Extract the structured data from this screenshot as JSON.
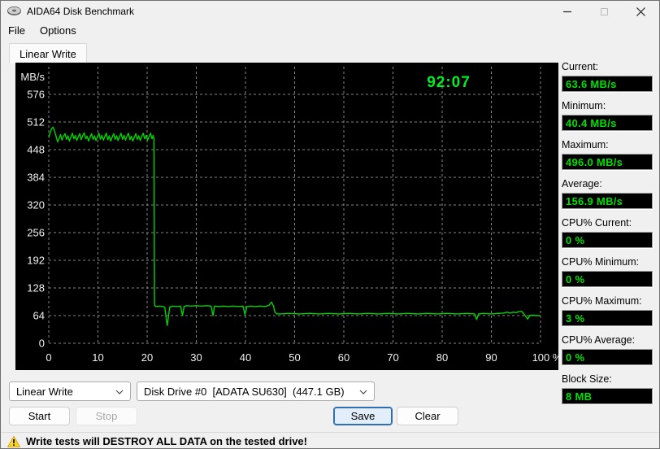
{
  "window": {
    "title": "AIDA64 Disk Benchmark",
    "icon": "disk-icon",
    "controls": {
      "minimize": "minimize",
      "maximize": "maximize",
      "close": "close"
    }
  },
  "menu": {
    "items": [
      "File",
      "Options"
    ]
  },
  "tab": {
    "label": "Linear Write"
  },
  "stats": {
    "rows": [
      {
        "label": "Current:",
        "value": "63.6 MB/s"
      },
      {
        "label": "Minimum:",
        "value": "40.4 MB/s"
      },
      {
        "label": "Maximum:",
        "value": "496.0 MB/s"
      },
      {
        "label": "Average:",
        "value": "156.9 MB/s"
      },
      {
        "label": "CPU% Current:",
        "value": "0 %"
      },
      {
        "label": "CPU% Minimum:",
        "value": "0 %"
      },
      {
        "label": "CPU% Maximum:",
        "value": "3 %"
      },
      {
        "label": "CPU% Average:",
        "value": "0 %"
      },
      {
        "label": "Block Size:",
        "value": "8 MB"
      }
    ]
  },
  "controls": {
    "test_select": "Linear Write",
    "drive_select": "Disk Drive #0  [ADATA SU630]  (447.1 GB)",
    "start": "Start",
    "stop": "Stop",
    "save": "Save",
    "clear": "Clear"
  },
  "status": {
    "message": "Write tests will DESTROY ALL DATA on the tested drive!"
  },
  "colors": {
    "line": "#00d400",
    "timer": "#00ee22",
    "value_text": "#00e000",
    "grid": "#858585",
    "axis_text": "#f0f0f0",
    "chart_bg": "#000000",
    "save_accent": "#2f6fb5"
  },
  "chart_data": {
    "type": "line",
    "title": "Linear Write",
    "ylabel": "MB/s",
    "xlabel": "%",
    "ylim": [
      0,
      640
    ],
    "xlim": [
      0,
      100
    ],
    "yticks": [
      0,
      64,
      128,
      192,
      256,
      320,
      384,
      448,
      512,
      576
    ],
    "xticks": [
      0,
      10,
      20,
      30,
      40,
      50,
      60,
      70,
      80,
      90,
      100
    ],
    "xtick_labels": [
      "0",
      "10",
      "20",
      "30",
      "40",
      "50",
      "60",
      "70",
      "80",
      "90",
      "100 %"
    ],
    "grid": true,
    "elapsed_time": "92:07",
    "series": [
      {
        "name": "Linear Write",
        "points": [
          [
            0,
            476
          ],
          [
            0.3,
            488
          ],
          [
            0.6,
            497
          ],
          [
            0.9,
            500
          ],
          [
            1.2,
            490
          ],
          [
            1.5,
            478
          ],
          [
            1.8,
            466
          ],
          [
            2.1,
            474
          ],
          [
            2.4,
            483
          ],
          [
            2.7,
            470
          ],
          [
            3.0,
            479
          ],
          [
            3.3,
            485
          ],
          [
            3.6,
            472
          ],
          [
            3.9,
            480
          ],
          [
            4.2,
            468
          ],
          [
            4.5,
            477
          ],
          [
            4.8,
            486
          ],
          [
            5.1,
            473
          ],
          [
            5.4,
            481
          ],
          [
            5.7,
            469
          ],
          [
            6.0,
            478
          ],
          [
            6.3,
            485
          ],
          [
            6.6,
            471
          ],
          [
            6.9,
            480
          ],
          [
            7.2,
            487
          ],
          [
            7.5,
            473
          ],
          [
            7.8,
            479
          ],
          [
            8.1,
            468
          ],
          [
            8.4,
            477
          ],
          [
            8.7,
            485
          ],
          [
            9.0,
            472
          ],
          [
            9.3,
            480
          ],
          [
            9.6,
            469
          ],
          [
            9.9,
            478
          ],
          [
            10.2,
            486
          ],
          [
            10.5,
            472
          ],
          [
            10.8,
            481
          ],
          [
            11.1,
            470
          ],
          [
            11.4,
            479
          ],
          [
            11.7,
            486
          ],
          [
            12.0,
            471
          ],
          [
            12.3,
            480
          ],
          [
            12.6,
            468
          ],
          [
            12.9,
            477
          ],
          [
            13.2,
            485
          ],
          [
            13.5,
            472
          ],
          [
            13.8,
            480
          ],
          [
            14.1,
            469
          ],
          [
            14.4,
            478
          ],
          [
            14.7,
            486
          ],
          [
            15.0,
            472
          ],
          [
            15.3,
            481
          ],
          [
            15.6,
            470
          ],
          [
            15.9,
            479
          ],
          [
            16.2,
            486
          ],
          [
            16.5,
            471
          ],
          [
            16.8,
            479
          ],
          [
            17.1,
            468
          ],
          [
            17.4,
            477
          ],
          [
            17.7,
            485
          ],
          [
            18.0,
            472
          ],
          [
            18.3,
            480
          ],
          [
            18.6,
            469
          ],
          [
            18.9,
            478
          ],
          [
            19.2,
            486
          ],
          [
            19.5,
            473
          ],
          [
            19.8,
            481
          ],
          [
            20.1,
            470
          ],
          [
            20.4,
            478
          ],
          [
            20.7,
            486
          ],
          [
            21.0,
            473
          ],
          [
            21.2,
            481
          ],
          [
            21.4,
            474
          ],
          [
            21.5,
            88
          ],
          [
            21.8,
            85
          ],
          [
            22.5,
            86
          ],
          [
            23.2,
            85
          ],
          [
            23.6,
            83
          ],
          [
            23.9,
            55
          ],
          [
            24.1,
            41
          ],
          [
            24.3,
            58
          ],
          [
            24.6,
            84
          ],
          [
            25.2,
            86
          ],
          [
            26,
            85
          ],
          [
            26.8,
            86
          ],
          [
            27.2,
            64
          ],
          [
            27.5,
            85
          ],
          [
            28,
            87
          ],
          [
            29,
            86
          ],
          [
            30,
            87
          ],
          [
            31,
            86
          ],
          [
            32,
            87
          ],
          [
            33,
            86
          ],
          [
            33.4,
            64
          ],
          [
            33.7,
            86
          ],
          [
            34.5,
            85
          ],
          [
            35.5,
            86
          ],
          [
            36.5,
            85
          ],
          [
            37.5,
            86
          ],
          [
            38.5,
            85
          ],
          [
            39.5,
            86
          ],
          [
            39.9,
            66
          ],
          [
            40.3,
            85
          ],
          [
            41,
            86
          ],
          [
            42,
            85
          ],
          [
            43,
            86
          ],
          [
            44,
            85
          ],
          [
            44.8,
            88
          ],
          [
            45.3,
            95
          ],
          [
            45.7,
            86
          ],
          [
            46.0,
            72
          ],
          [
            46.4,
            68
          ],
          [
            47,
            68
          ],
          [
            49,
            69
          ],
          [
            51,
            68
          ],
          [
            53,
            69
          ],
          [
            55,
            68
          ],
          [
            57,
            69
          ],
          [
            59,
            68
          ],
          [
            61,
            69
          ],
          [
            63,
            68
          ],
          [
            65,
            69
          ],
          [
            67,
            68
          ],
          [
            69,
            69
          ],
          [
            71,
            68
          ],
          [
            73,
            69
          ],
          [
            75,
            68
          ],
          [
            77,
            69
          ],
          [
            79,
            68
          ],
          [
            81,
            69
          ],
          [
            83,
            68
          ],
          [
            85,
            69
          ],
          [
            86.6,
            68
          ],
          [
            87.0,
            55
          ],
          [
            87.4,
            68
          ],
          [
            88.5,
            69
          ],
          [
            90,
            68
          ],
          [
            91.5,
            69
          ],
          [
            92.6,
            70
          ],
          [
            93.2,
            72
          ],
          [
            93.8,
            70
          ],
          [
            94.4,
            72
          ],
          [
            95,
            71
          ],
          [
            95.6,
            73
          ],
          [
            96.1,
            74
          ],
          [
            96.5,
            70
          ],
          [
            97.0,
            62
          ],
          [
            97.4,
            56
          ],
          [
            97.8,
            64
          ],
          [
            98.4,
            65
          ],
          [
            99.2,
            64
          ],
          [
            100,
            64
          ]
        ]
      }
    ]
  }
}
